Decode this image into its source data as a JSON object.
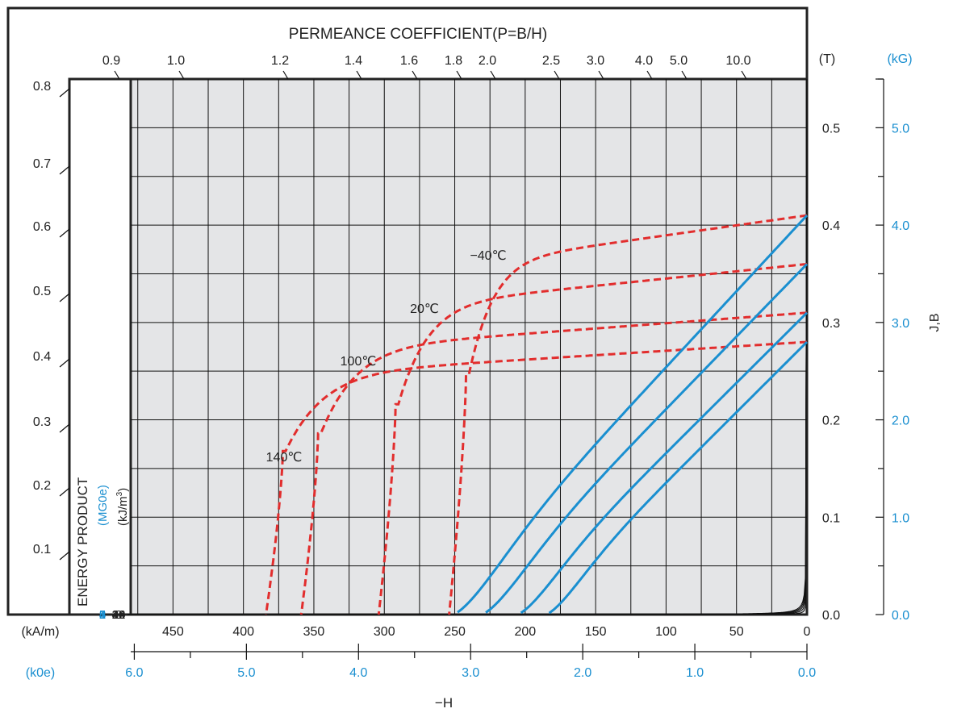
{
  "colors": {
    "plot_bg": "#e4e5e7",
    "grid": "#111111",
    "demag_blue": "#1a8fd0",
    "intrinsic_red": "#e22d2d",
    "text_blue": "#1a8fd0",
    "text_black": "#222222"
  },
  "chart_data": {
    "type": "line",
    "title": "PERMEANCE COEFFICIENT(P=B/H)",
    "x_label": "−H",
    "y_label_right": "J,B",
    "x_unit_kam": "(kA/m)",
    "x_unit_koe": "(k0e)",
    "y_unit_t": "(T)",
    "y_unit_kg": "(kG)",
    "xlim_kam": [
      0,
      480
    ],
    "ylim_t": [
      0,
      0.55
    ],
    "x_ticks_kam": [
      "450",
      "400",
      "350",
      "300",
      "250",
      "200",
      "150",
      "100",
      "50",
      "0"
    ],
    "x_ticks_koe": [
      "6.0",
      "5.0",
      "4.0",
      "3.0",
      "2.0",
      "1.0",
      "0.0"
    ],
    "y_ticks_t": [
      "0.0",
      "0.1",
      "0.2",
      "0.3",
      "0.4",
      "0.5"
    ],
    "y_ticks_kg": [
      "0.0",
      "1.0",
      "2.0",
      "3.0",
      "4.0",
      "5.0"
    ],
    "left_scale_ticks": [
      "0.1",
      "0.2",
      "0.3",
      "0.4",
      "0.5",
      "0.6",
      "0.7",
      "0.8"
    ],
    "permeance_ticks": [
      "0.9",
      "1.0",
      "1.2",
      "1.4",
      "1.6",
      "1.8",
      "2.0",
      "2.5",
      "3.0",
      "4.0",
      "5.0",
      "10.0"
    ],
    "energy_product": {
      "title": "ENERGY PRODUCT",
      "unit_mgoe": "(MG0e)",
      "unit_kjm3": "(kJ/m",
      "unit_exp": "3",
      "unit_close": ")",
      "mgoe": [
        "5",
        "4",
        "3",
        "2",
        "1"
      ],
      "kjm3": [
        "40",
        "32",
        "24",
        "16",
        "8"
      ],
      "values_kjm3": [
        40,
        32,
        24,
        16,
        8
      ]
    },
    "temperature_labels": [
      "−40℃",
      "20℃",
      "100℃",
      "140℃"
    ],
    "series": [
      {
        "name": "−40℃",
        "kind": "intrinsic",
        "Br": 0.41,
        "Hcj": 240
      },
      {
        "name": "20℃",
        "kind": "intrinsic",
        "Br": 0.36,
        "Hcj": 290
      },
      {
        "name": "100℃",
        "kind": "intrinsic",
        "Br": 0.31,
        "Hcj": 345
      },
      {
        "name": "140℃",
        "kind": "intrinsic",
        "Br": 0.28,
        "Hcj": 370
      },
      {
        "name": "−40℃",
        "kind": "normal",
        "Br": 0.41,
        "Hcb": 248
      },
      {
        "name": "20℃",
        "kind": "normal",
        "Br": 0.36,
        "Hcb": 228
      },
      {
        "name": "100℃",
        "kind": "normal",
        "Br": 0.31,
        "Hcb": 203
      },
      {
        "name": "140℃",
        "kind": "normal",
        "Br": 0.28,
        "Hcb": 183
      }
    ]
  }
}
